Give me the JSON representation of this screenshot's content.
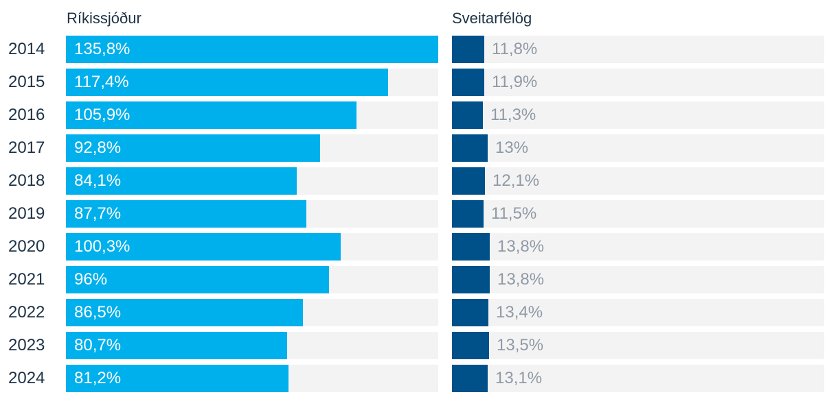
{
  "chart_data": {
    "type": "bar",
    "orientation": "horizontal",
    "categories": [
      "2014",
      "2015",
      "2016",
      "2017",
      "2018",
      "2019",
      "2020",
      "2021",
      "2022",
      "2023",
      "2024"
    ],
    "series": [
      {
        "name": "Ríkissjóður",
        "values": [
          135.8,
          117.4,
          105.9,
          92.8,
          84.1,
          87.7,
          100.3,
          96,
          86.5,
          80.7,
          81.2
        ],
        "labels": [
          "135,8%",
          "117,4%",
          "105,9%",
          "92,8%",
          "84,1%",
          "87,7%",
          "100,3%",
          "96%",
          "86,5%",
          "80,7%",
          "81,2%"
        ],
        "color": "#00b0ec",
        "xlim": [
          0,
          135.8
        ]
      },
      {
        "name": "Sveitarfélög",
        "values": [
          11.8,
          11.9,
          11.3,
          13,
          12.1,
          11.5,
          13.8,
          13.8,
          13.4,
          13.5,
          13.1
        ],
        "labels": [
          "11,8%",
          "11,9%",
          "11,3%",
          "13%",
          "12,1%",
          "11,5%",
          "13,8%",
          "13,8%",
          "13,4%",
          "13,5%",
          "13,1%"
        ],
        "color": "#00508a",
        "xlim": [
          0,
          135.8
        ]
      }
    ],
    "track_color": "#f3f3f3",
    "label_colors": {
      "inside": "#ffffff",
      "outside": "#8f9aa6"
    },
    "title": "",
    "xlabel": "",
    "ylabel": ""
  }
}
